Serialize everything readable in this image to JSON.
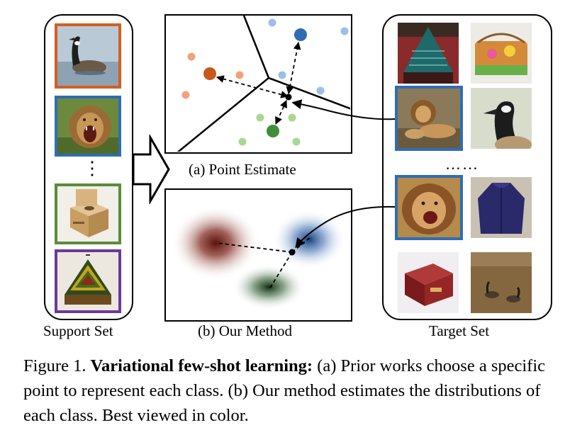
{
  "figure": {
    "support_label": "Support Set",
    "target_label": "Target Set",
    "panel_a_label": "(a) Point Estimate",
    "panel_b_label": "(b) Our Method",
    "vertical_ellipsis": "⋮",
    "horizontal_ellipsis": "……",
    "colors": {
      "orange": "#d35f1e",
      "blue": "#2f6db3",
      "green": "#3f8f3a",
      "brown": "#6b1c12",
      "navy": "#1e4a86",
      "darkgreen": "#1f4a1f",
      "purple": "#6a3a9a",
      "olive": "#5a8c3a"
    },
    "support_images": [
      {
        "icon": "goose-photo",
        "border": "orange"
      },
      {
        "icon": "lion-roaring-photo",
        "border": "blue"
      },
      {
        "icon": "shit-box-photo",
        "border": "green"
      },
      {
        "icon": "poncho-photo",
        "border": "purple"
      }
    ],
    "target_images": [
      {
        "icon": "poncho-photo"
      },
      {
        "icon": "decorated-box-photo"
      },
      {
        "icon": "lions-resting-photo",
        "highlight": "blue"
      },
      {
        "icon": "goose-head-photo"
      },
      {
        "icon": "lion-face-photo",
        "highlight": "blue"
      },
      {
        "icon": "blue-jacket-photo"
      },
      {
        "icon": "red-box-photo"
      },
      {
        "icon": "geese-field-photo"
      }
    ]
  },
  "caption": {
    "prefix": "Figure 1. ",
    "bold": "Variational few-shot learning:",
    "text": " (a) Prior works choose a specific point to represent each class. (b) Our method estimates the distributions of each class. Best viewed in color."
  }
}
